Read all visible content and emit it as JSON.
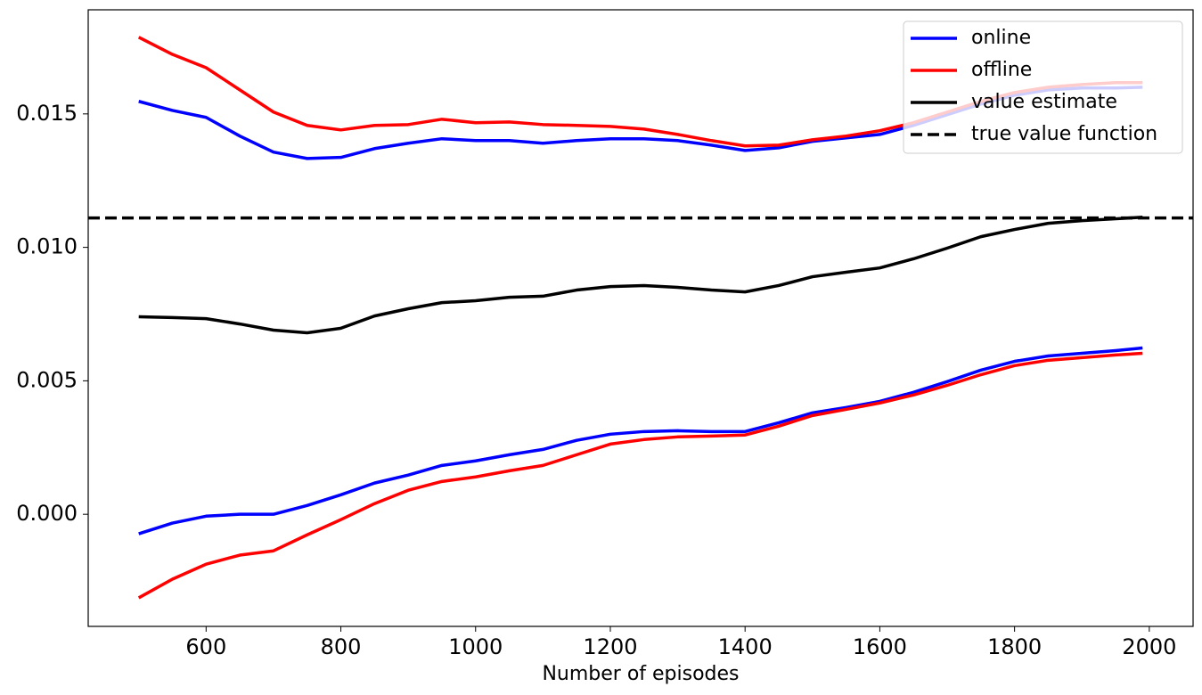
{
  "chart_data": {
    "type": "line",
    "xlabel": "Number of episodes",
    "x": [
      500,
      550,
      600,
      650,
      700,
      750,
      800,
      850,
      900,
      950,
      1000,
      1050,
      1100,
      1150,
      1200,
      1250,
      1300,
      1350,
      1400,
      1450,
      1500,
      1550,
      1600,
      1650,
      1700,
      1750,
      1800,
      1850,
      1900,
      1950,
      1990
    ],
    "series": [
      {
        "name": "online",
        "color": "#0000ff",
        "upper": [
          0.01547,
          0.01513,
          0.01487,
          0.01417,
          0.01357,
          0.01333,
          0.01337,
          0.0137,
          0.0139,
          0.01407,
          0.014,
          0.014,
          0.0139,
          0.014,
          0.01407,
          0.01407,
          0.014,
          0.01383,
          0.01363,
          0.01373,
          0.01397,
          0.0141,
          0.01423,
          0.01457,
          0.01497,
          0.01537,
          0.0157,
          0.0159,
          0.01597,
          0.01597,
          0.016
        ],
        "lower": [
          -0.00073,
          -0.00033,
          -7e-05,
          0,
          0,
          0.00033,
          0.00073,
          0.00117,
          0.00147,
          0.00183,
          0.002,
          0.00223,
          0.00243,
          0.00277,
          0.003,
          0.0031,
          0.00313,
          0.0031,
          0.0031,
          0.00343,
          0.0038,
          0.004,
          0.00423,
          0.00457,
          0.00497,
          0.0054,
          0.00573,
          0.00593,
          0.00603,
          0.00613,
          0.00623
        ]
      },
      {
        "name": "offline",
        "color": "#ff0000",
        "upper": [
          0.01787,
          0.01723,
          0.01673,
          0.0159,
          0.01507,
          0.01457,
          0.0144,
          0.01457,
          0.0146,
          0.0148,
          0.01467,
          0.0147,
          0.0146,
          0.01457,
          0.01453,
          0.01443,
          0.01423,
          0.014,
          0.0138,
          0.01383,
          0.01403,
          0.01417,
          0.01437,
          0.01467,
          0.01507,
          0.01547,
          0.0158,
          0.016,
          0.0161,
          0.01617,
          0.01617
        ],
        "lower": [
          -0.00313,
          -0.00243,
          -0.00187,
          -0.00153,
          -0.00137,
          -0.00077,
          -0.0002,
          0.0004,
          0.0009,
          0.00123,
          0.0014,
          0.00163,
          0.00183,
          0.00223,
          0.00263,
          0.0028,
          0.0029,
          0.00293,
          0.00297,
          0.0033,
          0.0037,
          0.00393,
          0.00417,
          0.00447,
          0.00483,
          0.00523,
          0.00557,
          0.00577,
          0.00587,
          0.00597,
          0.00603
        ]
      },
      {
        "name": "value estimate",
        "color": "#000000",
        "values": [
          0.0074,
          0.00737,
          0.00733,
          0.00713,
          0.0069,
          0.0068,
          0.00697,
          0.00743,
          0.0077,
          0.00793,
          0.008,
          0.00813,
          0.00817,
          0.0084,
          0.00853,
          0.00857,
          0.0085,
          0.0084,
          0.00833,
          0.00857,
          0.0089,
          0.00907,
          0.00923,
          0.00957,
          0.00997,
          0.0104,
          0.01067,
          0.0109,
          0.011,
          0.01107,
          0.01113
        ]
      },
      {
        "name": "true value function",
        "color": "#000000",
        "linestyle": "dashed",
        "value": 0.0111
      }
    ],
    "xlim": [
      425,
      2065
    ],
    "ylim": [
      -0.0042,
      0.0189
    ],
    "xticks": [
      600,
      800,
      1000,
      1200,
      1400,
      1600,
      1800,
      2000
    ],
    "yticks": [
      {
        "value": 0,
        "label": "0.000"
      },
      {
        "value": 0.005,
        "label": "0.005"
      },
      {
        "value": 0.01,
        "label": "0.010"
      },
      {
        "value": 0.015,
        "label": "0.015"
      }
    ],
    "legend": "upper right"
  }
}
